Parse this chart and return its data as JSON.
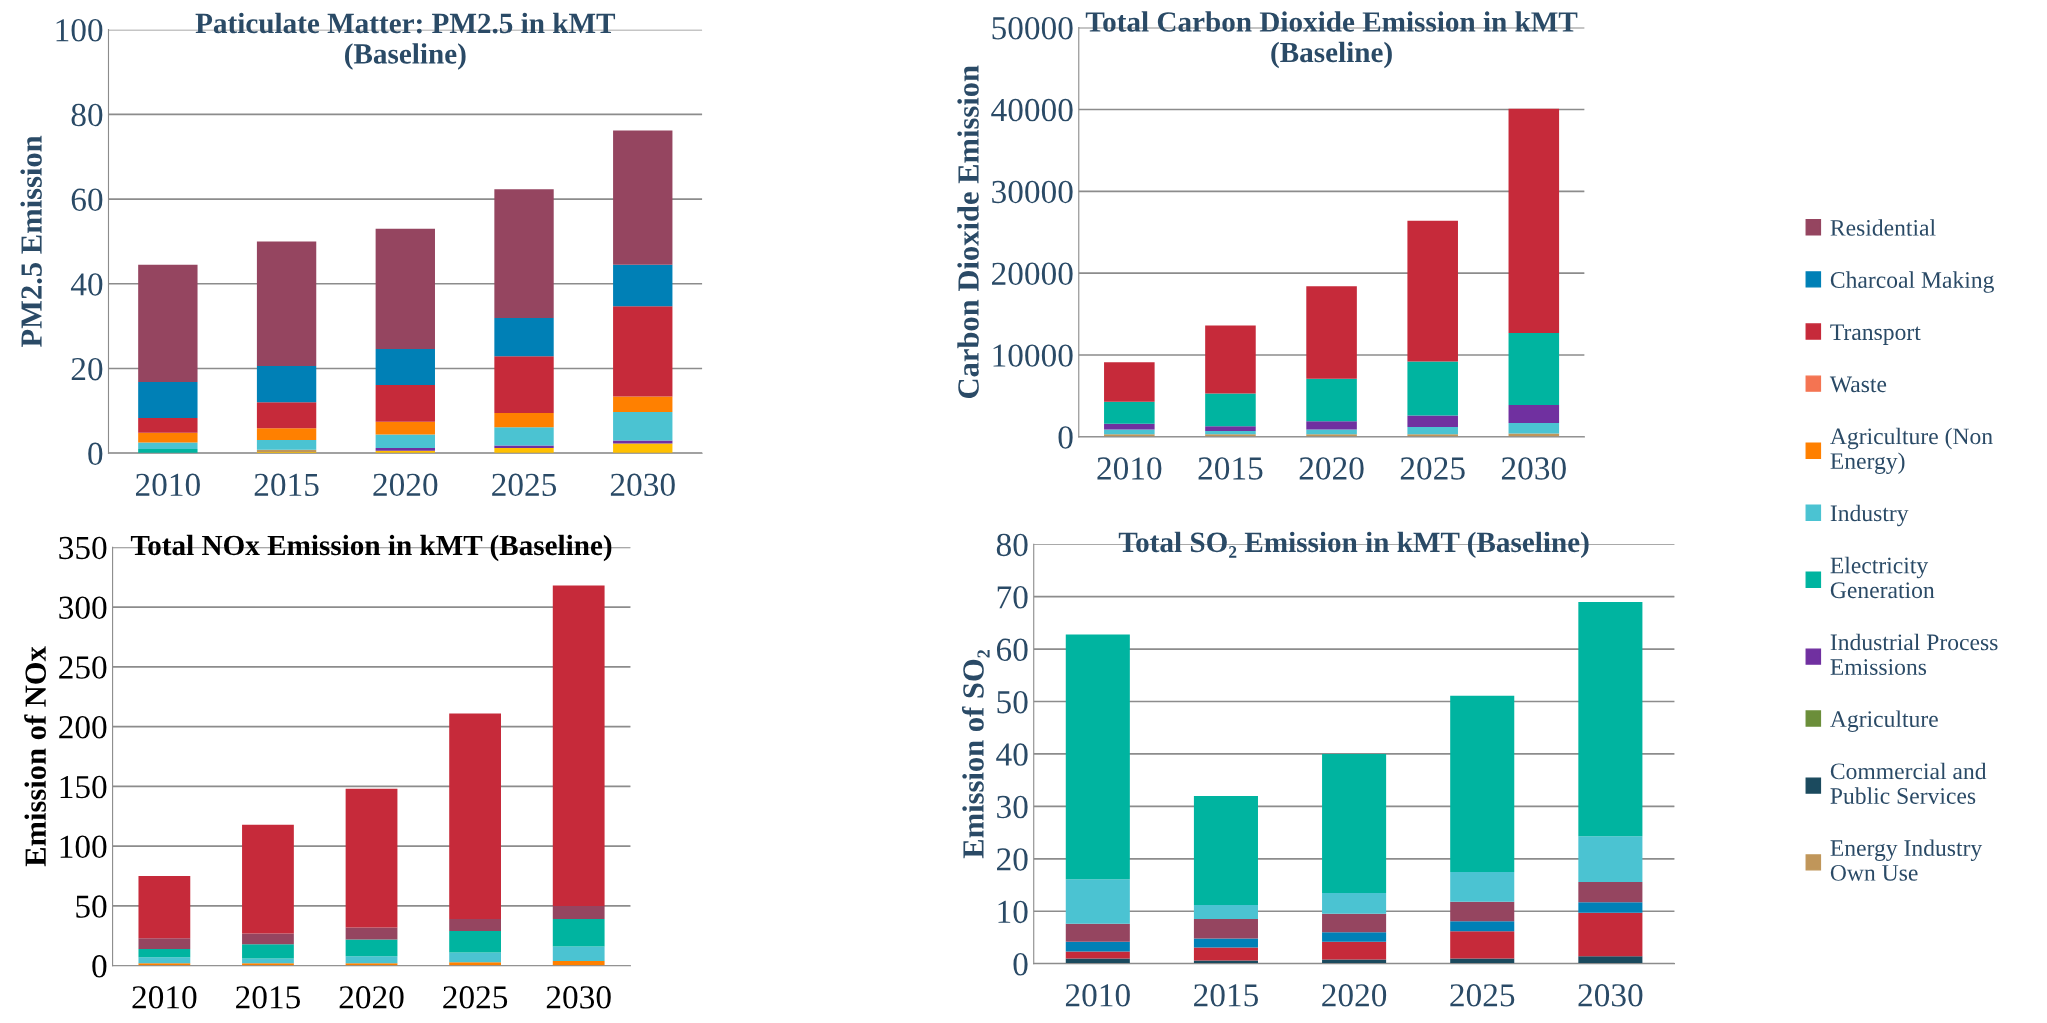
{
  "chart_data": [
    {
      "type": "bar",
      "stacked": true,
      "title": "Paticulate Matter: PM2.5 in kMT\n(Baseline)",
      "ylabel": "PM2.5 Emission",
      "categories": [
        "2010",
        "2015",
        "2020",
        "2025",
        "2030"
      ],
      "ylim": [
        0,
        100
      ],
      "yticks": [
        0,
        20,
        40,
        60,
        80,
        100
      ],
      "grid": "y",
      "legend": "right",
      "series": [
        {
          "color": "#ffc000",
          "values": [
            null,
            0.3,
            0.6,
            1.2,
            2.3
          ]
        },
        {
          "name": "Energy Industry\nOwn Use",
          "color": "#c0965a",
          "values": [
            null,
            0.5,
            null,
            null,
            null
          ]
        },
        {
          "name": "Commercial and\nPublic Services",
          "color": "#1b4a5e",
          "values": [
            null,
            null,
            null,
            null,
            null
          ]
        },
        {
          "name": "Agriculture",
          "color": "#6b8e3a",
          "values": [
            null,
            null,
            null,
            null,
            null
          ]
        },
        {
          "name": "Industrial Process\nEmissions",
          "color": "#7030a0",
          "values": [
            null,
            null,
            0.6,
            0.6,
            0.7
          ]
        },
        {
          "name": "Electricity\nGeneration",
          "color": "#00b4a0",
          "values": [
            1.0,
            null,
            null,
            null,
            null
          ]
        },
        {
          "name": "Industry",
          "color": "#4bc3d2",
          "values": [
            1.5,
            2.3,
            3.2,
            4.3,
            6.7
          ]
        },
        {
          "name": "Agriculture (Non\nEnergy)",
          "color": "#ff8000",
          "values": [
            2.3,
            2.8,
            3.0,
            3.4,
            3.7
          ]
        },
        {
          "name": "Waste",
          "color": "#f47452",
          "values": [
            null,
            null,
            null,
            null,
            null
          ]
        },
        {
          "name": "Transport",
          "color": "#c62a3a",
          "values": [
            3.5,
            6.1,
            8.7,
            13.4,
            21.3
          ]
        },
        {
          "name": "Charcoal Making",
          "color": "#0080b6",
          "values": [
            8.5,
            8.6,
            8.5,
            9.0,
            9.8
          ]
        },
        {
          "name": "Residential",
          "color": "#954560",
          "values": [
            27.7,
            29.4,
            28.4,
            30.4,
            31.7
          ]
        }
      ]
    },
    {
      "type": "bar",
      "stacked": true,
      "title": "Total Carbon Dioxide Emission in kMT\n(Baseline)",
      "ylabel": "Carbon Dioxide Emission",
      "categories": [
        "2010",
        "2015",
        "2020",
        "2025",
        "2030"
      ],
      "ylim": [
        0,
        50000
      ],
      "yticks": [
        0,
        10000,
        20000,
        30000,
        40000,
        50000
      ],
      "grid": "y",
      "series": [
        {
          "color": "#c0965a",
          "values": [
            300,
            300,
            300,
            300,
            400
          ]
        },
        {
          "color": "#4bc3d2",
          "values": [
            600,
            400,
            600,
            900,
            1300
          ]
        },
        {
          "color": "#7030a0",
          "values": [
            700,
            600,
            1000,
            1400,
            2200
          ]
        },
        {
          "color": "#00b4a0",
          "values": [
            2700,
            4000,
            5200,
            6600,
            8800
          ]
        },
        {
          "color": "#c62a3a",
          "values": [
            4800,
            8300,
            11300,
            17200,
            27400
          ]
        }
      ]
    },
    {
      "type": "bar",
      "stacked": true,
      "title": "Total NOx Emission in kMT (Baseline)",
      "ylabel": "Emission of NOx",
      "categories": [
        "2010",
        "2015",
        "2020",
        "2025",
        "2030"
      ],
      "ylim": [
        0,
        350
      ],
      "yticks": [
        0,
        50,
        100,
        150,
        200,
        250,
        300,
        350
      ],
      "grid": "y",
      "series": [
        {
          "color": "#ff8000",
          "values": [
            2,
            2,
            2,
            3,
            4
          ]
        },
        {
          "color": "#4bc3d2",
          "values": [
            5,
            4,
            6,
            8,
            12
          ]
        },
        {
          "color": "#00b4a0",
          "values": [
            7,
            12,
            14,
            18,
            23
          ]
        },
        {
          "color": "#954560",
          "values": [
            9,
            9,
            10,
            10,
            11
          ]
        },
        {
          "color": "#c62a3a",
          "values": [
            52,
            91,
            116,
            172,
            268
          ]
        }
      ]
    },
    {
      "type": "bar",
      "stacked": true,
      "title": "Total SO₂ Emission in kMT (Baseline)",
      "ylabel": "Emission of SO₂",
      "categories": [
        "2010",
        "2015",
        "2020",
        "2025",
        "2030"
      ],
      "ylim": [
        0,
        80
      ],
      "yticks": [
        0,
        10,
        20,
        30,
        40,
        50,
        60,
        70,
        80
      ],
      "grid": "y",
      "series": [
        {
          "color": "#1b4a5e",
          "values": [
            1.0,
            0.6,
            0.8,
            1.0,
            1.4
          ]
        },
        {
          "color": "#c62a3a",
          "values": [
            1.3,
            2.5,
            3.4,
            5.2,
            8.3
          ]
        },
        {
          "color": "#0080b6",
          "values": [
            1.9,
            1.7,
            1.8,
            1.9,
            2.0
          ]
        },
        {
          "color": "#954560",
          "values": [
            3.4,
            3.7,
            3.5,
            3.7,
            3.9
          ]
        },
        {
          "color": "#4bc3d2",
          "values": [
            8.5,
            2.7,
            4.0,
            5.7,
            8.7
          ]
        },
        {
          "color": "#00b4a0",
          "values": [
            46.7,
            20.8,
            26.5,
            33.6,
            44.7
          ]
        }
      ]
    }
  ]
}
